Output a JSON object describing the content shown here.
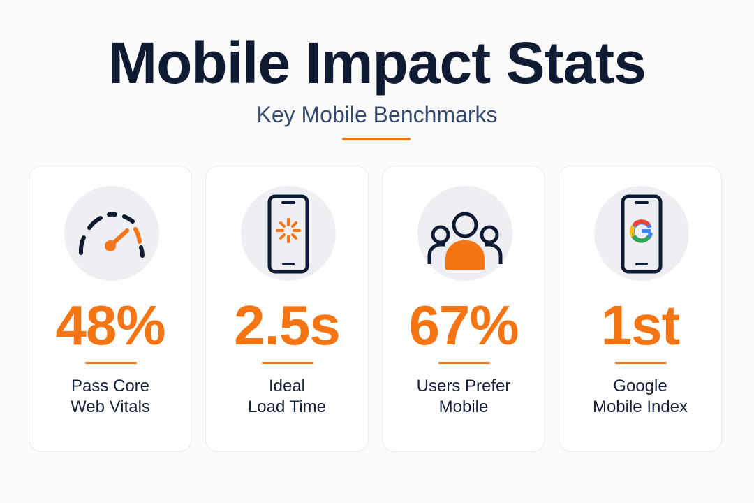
{
  "colors": {
    "navy": "#0f1b33",
    "subtitle": "#34496b",
    "accent": "#f57514",
    "text": "#16213a"
  },
  "header": {
    "title": "Mobile Impact Stats",
    "subtitle": "Key Mobile Benchmarks"
  },
  "cards": [
    {
      "icon": "speedometer-icon",
      "value": "48%",
      "label_line1": "Pass Core",
      "label_line2": "Web Vitals"
    },
    {
      "icon": "phone-loading-icon",
      "value": "2.5s",
      "label_line1": "Ideal",
      "label_line2": "Load Time"
    },
    {
      "icon": "users-group-icon",
      "value": "67%",
      "label_line1": "Users Prefer",
      "label_line2": "Mobile"
    },
    {
      "icon": "phone-google-icon",
      "value": "1st",
      "label_line1": "Google",
      "label_line2": "Mobile Index"
    }
  ]
}
